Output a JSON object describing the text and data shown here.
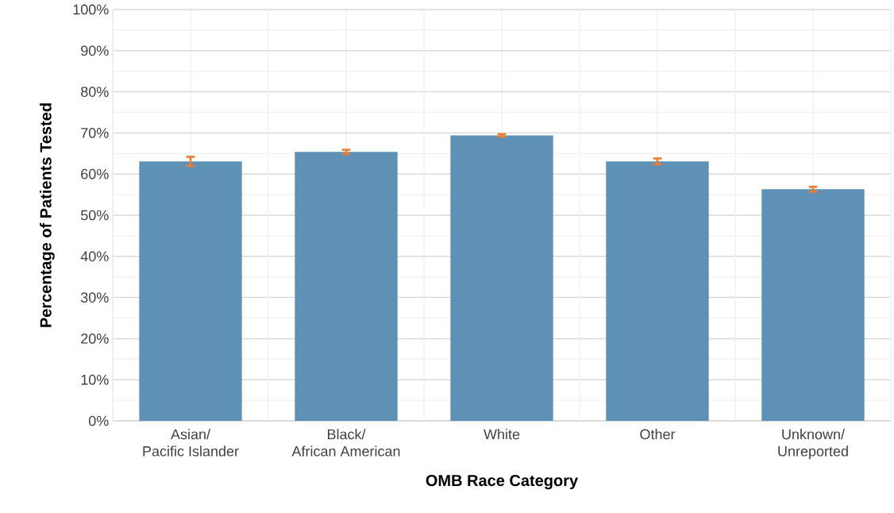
{
  "chart_data": {
    "type": "bar",
    "categories": [
      "Asian/\nPacific Islander",
      "Black/\nAfrican American",
      "White",
      "Other",
      "Unknown/\nUnreported"
    ],
    "values": [
      63.1,
      65.4,
      69.4,
      63.1,
      56.3
    ],
    "errors": [
      1.1,
      0.5,
      0.3,
      0.7,
      0.6
    ],
    "color": "#5f91b7",
    "xlabel": "OMB Race Category",
    "ylabel": "Percentage of Patients Tested",
    "ylim": [
      0,
      100
    ],
    "yticks": [
      {
        "value": 0,
        "label": "0%"
      },
      {
        "value": 10,
        "label": "10%"
      },
      {
        "value": 20,
        "label": "20%"
      },
      {
        "value": 30,
        "label": "30%"
      },
      {
        "value": 40,
        "label": "40%"
      },
      {
        "value": 50,
        "label": "50%"
      },
      {
        "value": 60,
        "label": "60%"
      },
      {
        "value": 70,
        "label": "70%"
      },
      {
        "value": 80,
        "label": "80%"
      },
      {
        "value": 90,
        "label": "90%"
      },
      {
        "value": 100,
        "label": "100%"
      }
    ],
    "grid": true
  }
}
